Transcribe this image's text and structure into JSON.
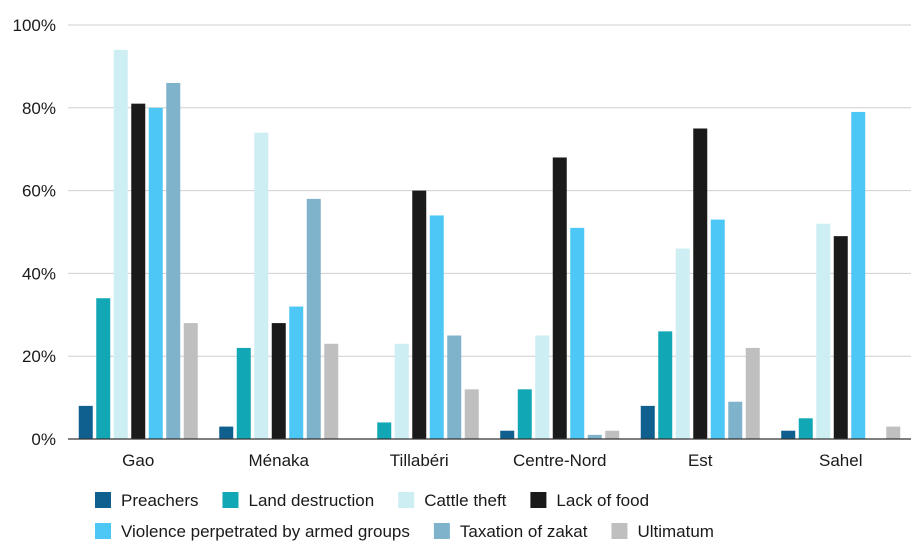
{
  "chart_data": {
    "type": "bar",
    "categories": [
      "Gao",
      "Ménaka",
      "Tillabéri",
      "Centre-Nord",
      "Est",
      "Sahel"
    ],
    "series": [
      {
        "name": "Preachers",
        "color": "#0f5f8f",
        "values": [
          8,
          3,
          0,
          2,
          8,
          2
        ]
      },
      {
        "name": "Land destruction",
        "color": "#11a7b5",
        "values": [
          34,
          22,
          4,
          12,
          26,
          5
        ]
      },
      {
        "name": "Cattle theft",
        "color": "#cdeef2",
        "values": [
          94,
          74,
          23,
          25,
          46,
          52
        ]
      },
      {
        "name": "Lack of food",
        "color": "#1a1a1a",
        "values": [
          81,
          28,
          60,
          68,
          75,
          49
        ]
      },
      {
        "name": "Violence perpetrated by armed groups",
        "color": "#4dc7f5",
        "values": [
          80,
          32,
          54,
          51,
          53,
          79
        ]
      },
      {
        "name": "Taxation of zakat",
        "color": "#7fb3cc",
        "values": [
          86,
          58,
          25,
          1,
          9,
          0
        ]
      },
      {
        "name": "Ultimatum",
        "color": "#bfbfbf",
        "values": [
          28,
          23,
          12,
          2,
          22,
          3
        ]
      }
    ],
    "ylim": [
      0,
      100
    ],
    "yticks": [
      "0%",
      "20%",
      "40%",
      "60%",
      "80%",
      "100%"
    ],
    "grid": true,
    "legend_position": "bottom"
  }
}
